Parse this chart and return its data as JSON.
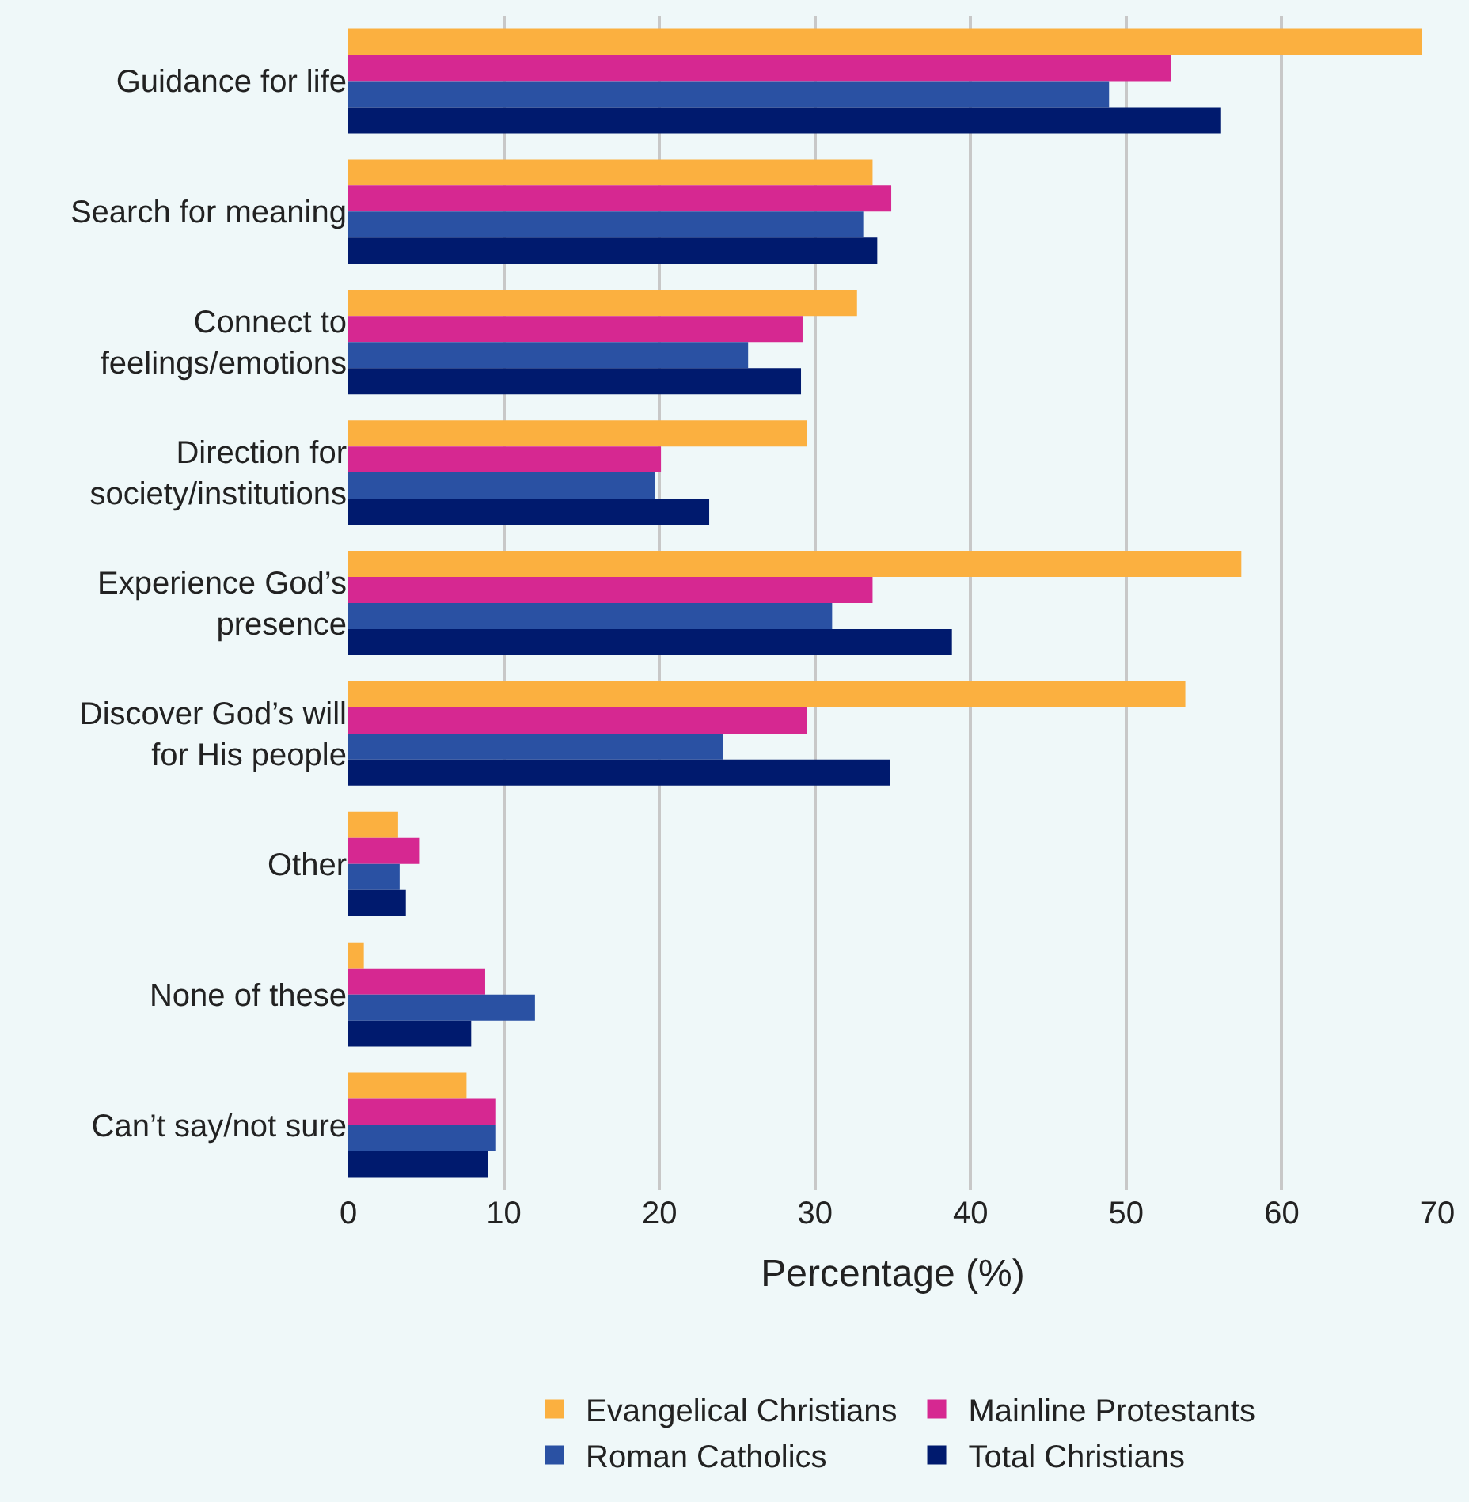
{
  "chart_data": {
    "type": "bar",
    "orientation": "horizontal",
    "categories": [
      "Guidance for life",
      "Search for meaning",
      "Connect to\nfeelings/emotions",
      "Direction for\nsociety/institutions",
      "Experience God’s\npresence",
      "Discover God’s will\nfor His people",
      "Other",
      "None of these",
      "Can’t say/not sure"
    ],
    "series": [
      {
        "name": "Evangelical Christians",
        "color": "#fbb040",
        "values": [
          69.0,
          33.7,
          32.7,
          29.5,
          57.4,
          53.8,
          3.2,
          1.0,
          7.6
        ]
      },
      {
        "name": "Mainline Protestants",
        "color": "#d62891",
        "values": [
          52.9,
          34.9,
          29.2,
          20.1,
          33.7,
          29.5,
          4.6,
          8.8,
          9.5
        ]
      },
      {
        "name": "Roman Catholics",
        "color": "#2a51a3",
        "values": [
          48.9,
          33.1,
          25.7,
          19.7,
          31.1,
          24.1,
          3.3,
          12.0,
          9.5
        ]
      },
      {
        "name": "Total Christians",
        "color": "#001a6e",
        "values": [
          56.1,
          34.0,
          29.1,
          23.2,
          38.8,
          34.8,
          3.7,
          7.9,
          9.0
        ]
      }
    ],
    "xlabel": "Percentage (%)",
    "xlim": [
      0,
      70
    ],
    "xticks": [
      0,
      10,
      20,
      30,
      40,
      50,
      60,
      70
    ],
    "grid": "x",
    "legend": "bottom"
  }
}
